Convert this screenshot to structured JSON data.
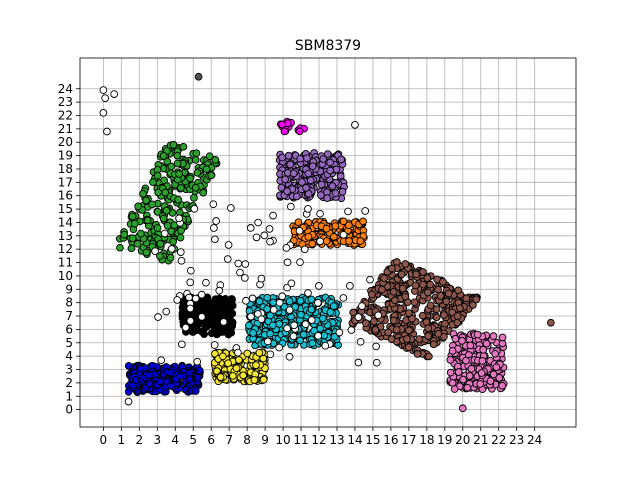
{
  "chart_data": {
    "type": "scatter",
    "title": "SBM8379",
    "xlabel": "",
    "ylabel": "",
    "xlim": [
      -1.3,
      26.3
    ],
    "ylim": [
      -1.3,
      26.3
    ],
    "grid": true,
    "legend": "none",
    "x_ticks": [
      0,
      1,
      2,
      3,
      4,
      5,
      6,
      7,
      8,
      9,
      10,
      11,
      12,
      13,
      14,
      15,
      16,
      17,
      18,
      19,
      20,
      21,
      22,
      23,
      24
    ],
    "y_ticks": [
      0,
      1,
      2,
      3,
      4,
      5,
      6,
      7,
      8,
      9,
      10,
      11,
      12,
      13,
      14,
      15,
      16,
      17,
      18,
      19,
      20,
      21,
      22,
      23,
      24
    ],
    "clusters": [
      {
        "color": "#2ca02c",
        "center": [
          3.6,
          15.5
        ],
        "spread": [
          1.6,
          4.2
        ],
        "angle": -0.35,
        "count": 260
      },
      {
        "color": "#9467bd",
        "center": [
          11.6,
          17.5
        ],
        "spread": [
          1.8,
          1.7
        ],
        "angle": 0.0,
        "count": 230
      },
      {
        "color": "#ff7f0e",
        "center": [
          12.5,
          13.2
        ],
        "spread": [
          2.0,
          0.9
        ],
        "angle": 0.0,
        "count": 200
      },
      {
        "color": "#8c564b",
        "center": [
          17.2,
          7.5
        ],
        "spread": [
          2.7,
          2.7
        ],
        "angle": -0.55,
        "count": 380
      },
      {
        "color": "#e377c2",
        "center": [
          20.8,
          3.6
        ],
        "spread": [
          1.5,
          2.1
        ],
        "angle": 0.0,
        "count": 220
      },
      {
        "color": "#17becf",
        "center": [
          10.6,
          6.6
        ],
        "spread": [
          2.5,
          1.8
        ],
        "angle": 0.0,
        "count": 380
      },
      {
        "color": "#000000",
        "center": [
          5.8,
          7.0
        ],
        "spread": [
          1.4,
          1.4
        ],
        "angle": 0.0,
        "count": 260
      },
      {
        "color": "#0000cc",
        "center": [
          3.4,
          2.3
        ],
        "spread": [
          2.0,
          1.0
        ],
        "angle": 0.0,
        "count": 260
      },
      {
        "color": "#f5e633",
        "center": [
          7.6,
          3.2
        ],
        "spread": [
          1.4,
          1.1
        ],
        "angle": 0.0,
        "count": 180
      },
      {
        "color": "#ff00ff",
        "center": [
          10.5,
          21.2
        ],
        "spread": [
          0.7,
          0.4
        ],
        "angle": 0.0,
        "count": 16
      },
      {
        "color": "#ffffff",
        "center": [
          9.0,
          9.5
        ],
        "spread": [
          6.5,
          6.0
        ],
        "angle": 0.0,
        "count": 110
      }
    ],
    "points": [
      {
        "x": 0.0,
        "y": 23.9,
        "color": "#ffffff"
      },
      {
        "x": 0.1,
        "y": 23.3,
        "color": "#ffffff"
      },
      {
        "x": 0.6,
        "y": 23.6,
        "color": "#ffffff"
      },
      {
        "x": 0.0,
        "y": 22.2,
        "color": "#ffffff"
      },
      {
        "x": 0.2,
        "y": 20.8,
        "color": "#ffffff"
      },
      {
        "x": 5.3,
        "y": 24.9,
        "color": "#555555"
      },
      {
        "x": 24.9,
        "y": 6.5,
        "color": "#8c564b"
      },
      {
        "x": 14.0,
        "y": 21.3,
        "color": "#ffffff"
      },
      {
        "x": 1.4,
        "y": 0.6,
        "color": "#ffffff"
      },
      {
        "x": 20.0,
        "y": 0.1,
        "color": "#e377c2"
      }
    ]
  }
}
